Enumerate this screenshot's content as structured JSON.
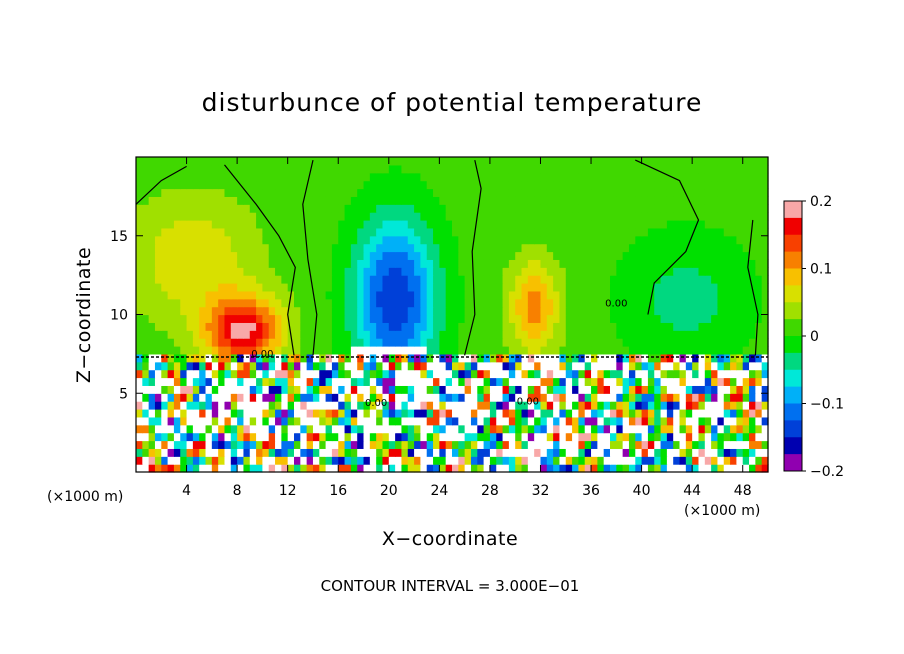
{
  "chart_data": {
    "type": "heatmap",
    "title": "disturbunce of potential temperature",
    "xlabel": "X−coordinate",
    "ylabel": "Z−coordinate",
    "x_unit_left": "(×1000 m)",
    "x_unit_right": "(×1000 m)",
    "footer": "CONTOUR INTERVAL = 3.000E−01",
    "xlim": [
      0,
      50
    ],
    "ylim": [
      0,
      20
    ],
    "x_ticks": [
      {
        "v": 4,
        "label": "4"
      },
      {
        "v": 8,
        "label": "8"
      },
      {
        "v": 12,
        "label": "12"
      },
      {
        "v": 16,
        "label": "16"
      },
      {
        "v": 20,
        "label": "20"
      },
      {
        "v": 24,
        "label": "24"
      },
      {
        "v": 28,
        "label": "28"
      },
      {
        "v": 32,
        "label": "32"
      },
      {
        "v": 36,
        "label": "36"
      },
      {
        "v": 40,
        "label": "40"
      },
      {
        "v": 44,
        "label": "44"
      },
      {
        "v": 48,
        "label": "48"
      }
    ],
    "y_ticks": [
      {
        "v": 5,
        "label": "5"
      },
      {
        "v": 10,
        "label": "10"
      },
      {
        "v": 15,
        "label": "15"
      }
    ],
    "colorbar": {
      "range": [
        -0.2,
        0.2
      ],
      "labels": [
        {
          "v": 0.2,
          "label": "0.2"
        },
        {
          "v": 0.1,
          "label": "0.1"
        },
        {
          "v": 0,
          "label": "0"
        },
        {
          "v": -0.1,
          "label": "−0.1"
        },
        {
          "v": -0.2,
          "label": "−0.2"
        }
      ],
      "colors": [
        "#f8a8a8",
        "#f00000",
        "#f84000",
        "#f88000",
        "#f8c000",
        "#d8e000",
        "#a0e000",
        "#40d800",
        "#00e000",
        "#00d880",
        "#00e8d8",
        "#00b0f8",
        "#0070f0",
        "#0040d8",
        "#0000b0",
        "#9000b0"
      ]
    },
    "upper_features": [
      {
        "kind": "warm",
        "x": 8.5,
        "z": 9.0,
        "sx": 3.0,
        "sz": 2.2,
        "peak": 0.17
      },
      {
        "kind": "warm",
        "x": 4.5,
        "z": 13.5,
        "sx": 5.0,
        "sz": 4.0,
        "peak": 0.06
      },
      {
        "kind": "cold",
        "x": 20.5,
        "z": 11.0,
        "sx": 3.2,
        "sz": 5.0,
        "peak": -0.16
      },
      {
        "kind": "warm",
        "x": 31.5,
        "z": 10.5,
        "sx": 2.0,
        "sz": 3.0,
        "peak": 0.1
      },
      {
        "kind": "cold",
        "x": 43.5,
        "z": 11.0,
        "sx": 5.0,
        "sz": 4.0,
        "peak": -0.045
      }
    ],
    "contour_zero_labels": [
      {
        "x": 10,
        "z": 7.3,
        "label": "0.00"
      },
      {
        "x": 19,
        "z": 4.2,
        "label": "0.00"
      },
      {
        "x": 31,
        "z": 4.3,
        "label": "0.00"
      },
      {
        "x": 38,
        "z": 10.5,
        "label": "0.00"
      }
    ]
  }
}
